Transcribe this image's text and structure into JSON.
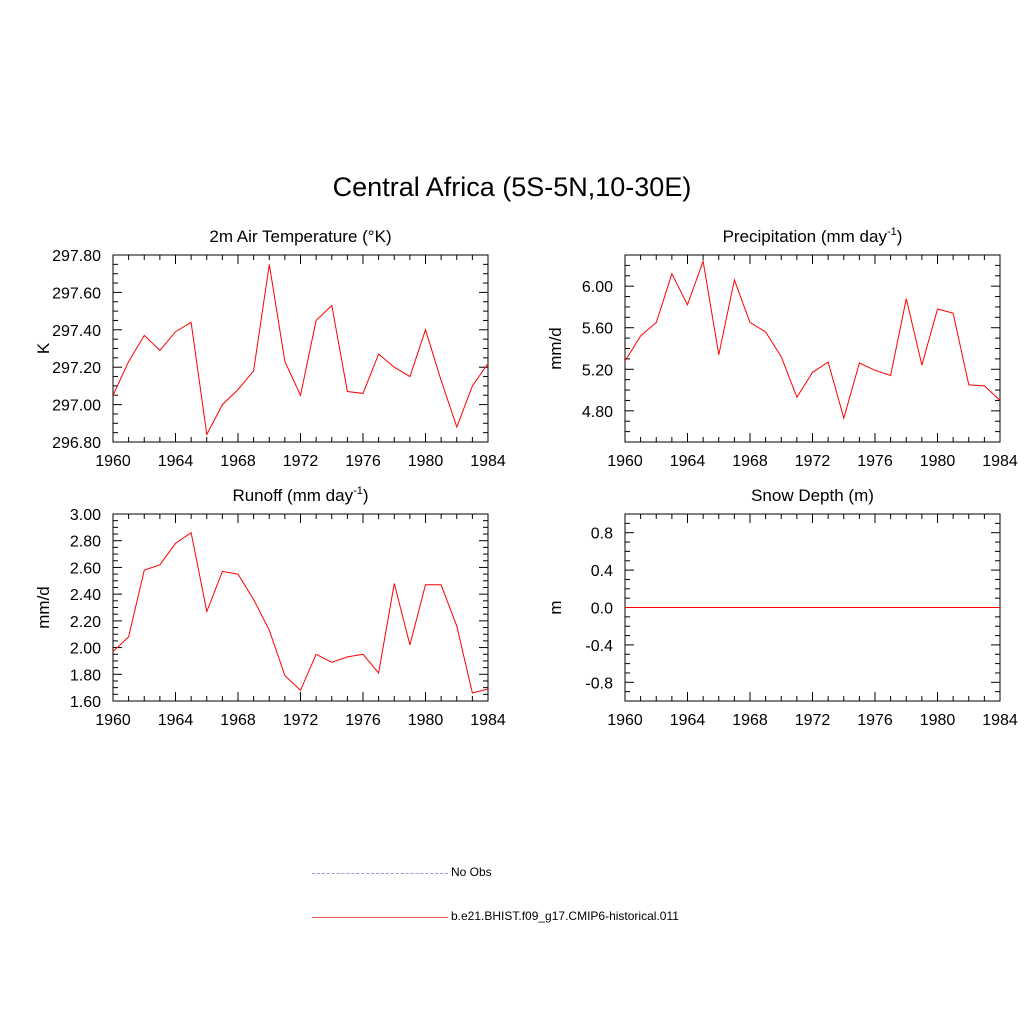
{
  "page": {
    "title": "Central Africa (5S-5N,10-30E)"
  },
  "legend": {
    "obs_label": "No Obs",
    "model_label": "b.e21.BHIST.f09_g17.CMIP6-historical.011",
    "obs_color": "#9999ee",
    "model_color": "#ff0000"
  },
  "chart_data": [
    {
      "type": "line",
      "title": "2m Air Temperature (°K)",
      "ylabel": "K",
      "xlim": [
        1960,
        1984
      ],
      "ylim": [
        296.8,
        297.8
      ],
      "yticks": [
        "296.80",
        "297.00",
        "297.20",
        "297.40",
        "297.60",
        "297.80"
      ],
      "xticks": [
        "1960",
        "1964",
        "1968",
        "1972",
        "1976",
        "1980",
        "1984"
      ],
      "x": [
        1960,
        1961,
        1962,
        1963,
        1964,
        1965,
        1966,
        1967,
        1968,
        1969,
        1970,
        1971,
        1972,
        1973,
        1974,
        1975,
        1976,
        1977,
        1978,
        1979,
        1980,
        1981,
        1982,
        1983,
        1984
      ],
      "series": [
        {
          "name": "b.e21.BHIST.f09_g17.CMIP6-historical.011",
          "values": [
            297.05,
            297.23,
            297.37,
            297.29,
            297.39,
            297.44,
            296.84,
            297.0,
            297.08,
            297.18,
            297.75,
            297.23,
            297.05,
            297.45,
            297.53,
            297.07,
            297.06,
            297.27,
            297.2,
            297.15,
            297.4,
            297.13,
            296.88,
            297.1,
            297.22
          ]
        }
      ]
    },
    {
      "type": "line",
      "title": "Precipitation (mm day-1)",
      "ylabel": "mm/d",
      "xlim": [
        1960,
        1984
      ],
      "ylim": [
        4.5,
        6.3
      ],
      "yticks": [
        "4.80",
        "5.20",
        "5.60",
        "6.00"
      ],
      "xticks": [
        "1960",
        "1964",
        "1968",
        "1972",
        "1976",
        "1980",
        "1984"
      ],
      "x": [
        1960,
        1961,
        1962,
        1963,
        1964,
        1965,
        1966,
        1967,
        1968,
        1969,
        1970,
        1971,
        1972,
        1973,
        1974,
        1975,
        1976,
        1977,
        1978,
        1979,
        1980,
        1981,
        1982,
        1983,
        1984
      ],
      "series": [
        {
          "name": "b.e21.BHIST.f09_g17.CMIP6-historical.011",
          "values": [
            5.28,
            5.52,
            5.65,
            6.12,
            5.82,
            6.24,
            5.34,
            6.06,
            5.65,
            5.56,
            5.32,
            4.93,
            5.17,
            5.27,
            4.73,
            5.26,
            5.19,
            5.14,
            5.88,
            5.24,
            5.78,
            5.74,
            5.05,
            5.04,
            4.9
          ]
        }
      ]
    },
    {
      "type": "line",
      "title": "Runoff (mm day-1)",
      "ylabel": "mm/d",
      "xlim": [
        1960,
        1984
      ],
      "ylim": [
        1.6,
        3.0
      ],
      "yticks": [
        "1.60",
        "1.80",
        "2.00",
        "2.20",
        "2.40",
        "2.60",
        "2.80",
        "3.00"
      ],
      "xticks": [
        "1960",
        "1964",
        "1968",
        "1972",
        "1976",
        "1980",
        "1984"
      ],
      "x": [
        1960,
        1961,
        1962,
        1963,
        1964,
        1965,
        1966,
        1967,
        1968,
        1969,
        1970,
        1971,
        1972,
        1973,
        1974,
        1975,
        1976,
        1977,
        1978,
        1979,
        1980,
        1981,
        1982,
        1983,
        1984
      ],
      "series": [
        {
          "name": "b.e21.BHIST.f09_g17.CMIP6-historical.011",
          "values": [
            1.97,
            2.08,
            2.58,
            2.62,
            2.78,
            2.86,
            2.27,
            2.57,
            2.55,
            2.36,
            2.13,
            1.79,
            1.68,
            1.95,
            1.89,
            1.93,
            1.95,
            1.81,
            2.48,
            2.02,
            2.47,
            2.47,
            2.16,
            1.66,
            1.69
          ]
        }
      ]
    },
    {
      "type": "line",
      "title": "Snow Depth (m)",
      "ylabel": "m",
      "xlim": [
        1960,
        1984
      ],
      "ylim": [
        -1.0,
        1.0
      ],
      "yticks": [
        "-0.8",
        "-0.4",
        "0.0",
        "0.4",
        "0.8"
      ],
      "xticks": [
        "1960",
        "1964",
        "1968",
        "1972",
        "1976",
        "1980",
        "1984"
      ],
      "x": [
        1960,
        1961,
        1962,
        1963,
        1964,
        1965,
        1966,
        1967,
        1968,
        1969,
        1970,
        1971,
        1972,
        1973,
        1974,
        1975,
        1976,
        1977,
        1978,
        1979,
        1980,
        1981,
        1982,
        1983,
        1984
      ],
      "series": [
        {
          "name": "b.e21.BHIST.f09_g17.CMIP6-historical.011",
          "values": [
            0,
            0,
            0,
            0,
            0,
            0,
            0,
            0,
            0,
            0,
            0,
            0,
            0,
            0,
            0,
            0,
            0,
            0,
            0,
            0,
            0,
            0,
            0,
            0,
            0
          ]
        }
      ]
    }
  ]
}
